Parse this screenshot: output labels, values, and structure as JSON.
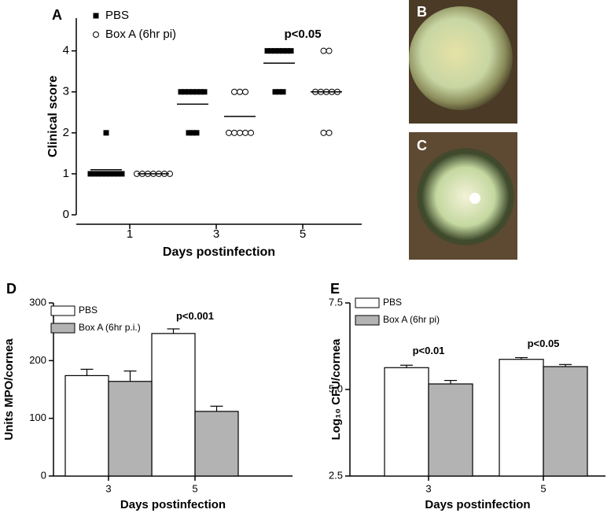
{
  "chart_data": [
    {
      "type": "dot",
      "panel": "A",
      "ylabel": "Clinical score",
      "xlabel": "Days postinfection",
      "categories": [
        "1",
        "3",
        "5"
      ],
      "ylim": [
        0,
        4.8
      ],
      "yticks": [
        0,
        1,
        2,
        3,
        4
      ],
      "series": [
        {
          "name": "PBS",
          "color": "#000000",
          "marker": "square",
          "values": [
            [
              2,
              1,
              1,
              1,
              1,
              1,
              1,
              1,
              1,
              1
            ],
            [
              3,
              3,
              3,
              3,
              3,
              3,
              3,
              2,
              2,
              2
            ],
            [
              4,
              4,
              4,
              4,
              4,
              4,
              4,
              3,
              3,
              3
            ]
          ],
          "means": [
            1.1,
            2.7,
            3.7
          ]
        },
        {
          "name": "Box A (6hr pi)",
          "color": "#ffffff",
          "marker": "circle",
          "values": [
            [
              1,
              1,
              1,
              1,
              1,
              1,
              1
            ],
            [
              3,
              3,
              3,
              2,
              2,
              2,
              2,
              2
            ],
            [
              4,
              4,
              3,
              3,
              3,
              3,
              3,
              2,
              2
            ]
          ],
          "means": [
            1.0,
            2.4,
            3.0
          ]
        }
      ],
      "annotations": [
        {
          "text": "p<0.05",
          "category": 2,
          "y": 4.4
        }
      ]
    },
    {
      "type": "bar",
      "panel": "D",
      "ylabel": "Units MPO/cornea",
      "xlabel": "Days postinfection",
      "categories": [
        "3",
        "5"
      ],
      "ylim": [
        0,
        300
      ],
      "yticks": [
        0,
        100,
        200,
        300
      ],
      "series": [
        {
          "name": "PBS",
          "color": "#ffffff",
          "values": [
            174,
            247
          ],
          "errors": [
            11,
            8
          ]
        },
        {
          "name": "Box A (6hr p.i.)",
          "color": "#b3b3b3",
          "values": [
            164,
            112
          ],
          "errors": [
            18,
            9
          ]
        }
      ],
      "annotations": [
        {
          "text": "p<0.001",
          "category": 1,
          "y": 276
        }
      ]
    },
    {
      "type": "bar",
      "panel": "E",
      "ylabel": "Log₁₀ CFU/cornea",
      "xlabel": "Days postinfection",
      "categories": [
        "3",
        "5"
      ],
      "ylim": [
        2.5,
        7.5
      ],
      "yticks": [
        2.5,
        {
          "value": 5,
          "label": "5.0"
        },
        7.5
      ],
      "series": [
        {
          "name": "PBS",
          "color": "#ffffff",
          "values": [
            5.63,
            5.87
          ],
          "errors": [
            0.07,
            0.05
          ]
        },
        {
          "name": "Box A (6hr pi)",
          "color": "#b3b3b3",
          "values": [
            5.16,
            5.66
          ],
          "errors": [
            0.1,
            0.06
          ]
        }
      ],
      "annotations": [
        {
          "text": "p<0.01",
          "category": 0,
          "y": 6.1
        },
        {
          "text": "p<0.05",
          "category": 1,
          "y": 6.3
        }
      ]
    }
  ],
  "images": [
    {
      "panel": "B"
    },
    {
      "panel": "C"
    }
  ]
}
